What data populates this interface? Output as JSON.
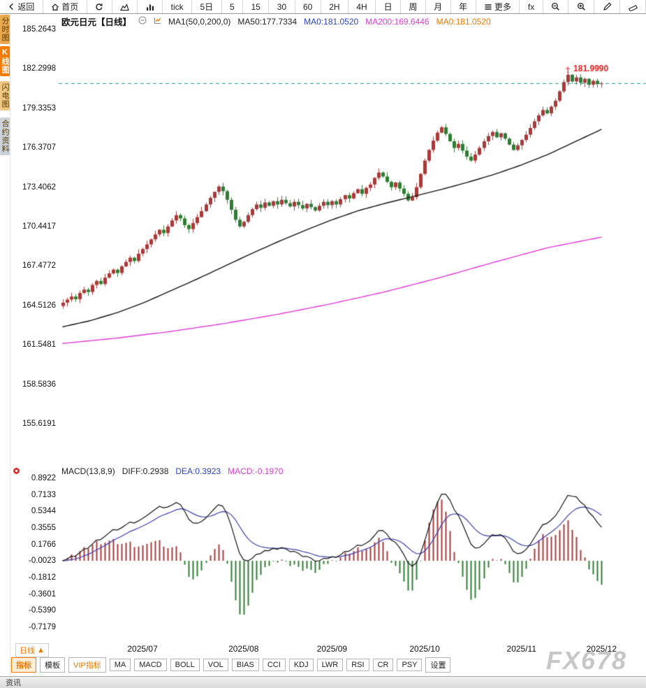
{
  "toolbar": {
    "items": [
      {
        "name": "back",
        "icon": "back-arrow",
        "label": "返回"
      },
      {
        "name": "home",
        "icon": "home",
        "label": "首页"
      },
      {
        "name": "refresh",
        "icon": "refresh",
        "label": ""
      },
      {
        "name": "area-chart",
        "icon": "area-chart",
        "label": ""
      },
      {
        "name": "volume-chart",
        "icon": "volume-chart",
        "label": ""
      },
      {
        "name": "tick",
        "label": "tick"
      },
      {
        "name": "period-5d",
        "label": "5日"
      },
      {
        "name": "period-5",
        "label": "5"
      },
      {
        "name": "period-15",
        "label": "15"
      },
      {
        "name": "period-30",
        "label": "30"
      },
      {
        "name": "period-60",
        "label": "60"
      },
      {
        "name": "period-2h",
        "label": "2H"
      },
      {
        "name": "period-4h",
        "label": "4H"
      },
      {
        "name": "period-day",
        "label": "日"
      },
      {
        "name": "period-week",
        "label": "周"
      },
      {
        "name": "period-month",
        "label": "月"
      },
      {
        "name": "period-year",
        "label": "年"
      },
      {
        "name": "more",
        "icon": "menu",
        "label": "更多"
      },
      {
        "name": "fx-indicator",
        "label": "fx"
      },
      {
        "name": "zoom-out",
        "icon": "zoom-out",
        "label": ""
      },
      {
        "name": "zoom-in",
        "icon": "zoom-in",
        "label": ""
      },
      {
        "name": "draw",
        "icon": "pencil",
        "label": ""
      },
      {
        "name": "measure",
        "icon": "ruler",
        "label": ""
      }
    ]
  },
  "side_tabs": [
    {
      "name": "time-chart",
      "label": "分时图",
      "active": false
    },
    {
      "name": "kline-chart",
      "label": "K线图",
      "active": true
    },
    {
      "name": "lightning-chart",
      "label": "闪电图",
      "active": false
    },
    {
      "name": "contract-info",
      "label": "合约资料",
      "active": false
    }
  ],
  "main_legend": {
    "symbol": "欧元日元【日线】",
    "ma_group": "MA1(50,0,200,0)",
    "ma50": "MA50:177.7334",
    "ma10": "MA0:181.0520",
    "ma200": "MA200:169.6446",
    "ma0": "MA0:181.0520"
  },
  "macd_legend": {
    "name": "MACD(13,8,9)",
    "diff": "DIFF:0.2938",
    "dea": "DEA:0.3923",
    "macd": "MACD:-0.1970"
  },
  "period_button": {
    "label": "日线",
    "arrow": "▲"
  },
  "bottom_tabs": [
    {
      "label": "指标",
      "active": true,
      "accent": true
    },
    {
      "label": "模板",
      "active": false,
      "accent": false
    },
    {
      "label": "VIP指标",
      "active": false,
      "accent": true
    },
    {
      "label": "MA",
      "active": false,
      "accent": false
    },
    {
      "label": "MACD",
      "active": false,
      "accent": false
    },
    {
      "label": "BOLL",
      "active": false,
      "accent": false
    },
    {
      "label": "VOL",
      "active": false,
      "accent": false
    },
    {
      "label": "BIAS",
      "active": false,
      "accent": false
    },
    {
      "label": "CCI",
      "active": false,
      "accent": false
    },
    {
      "label": "KDJ",
      "active": false,
      "accent": false
    },
    {
      "label": "LWR",
      "active": false,
      "accent": false
    },
    {
      "label": "RSI",
      "active": false,
      "accent": false
    },
    {
      "label": "CR",
      "active": false,
      "accent": false
    },
    {
      "label": "PSY",
      "active": false,
      "accent": false
    },
    {
      "label": "设置",
      "active": false,
      "accent": false
    }
  ],
  "watermark": "FX678",
  "status_bar": {
    "news": "资讯"
  },
  "colors": {
    "accent_orange": "#f07800",
    "candle_up": "#a93a3a",
    "candle_down": "#2f7d33",
    "ma50_line": "#111111",
    "ma200_line": "#e239d8",
    "diff_line": "#111111",
    "dea_line": "#3c3cae",
    "last_price_line": "#1a9e8f",
    "marker_red": "#e02020"
  },
  "chart_data": {
    "type": "candlestick",
    "title": "欧元日元 日线",
    "x_labels": [
      "2025/07",
      "2025/08",
      "2025/09",
      "2025/10",
      "2025/11",
      "2025/12"
    ],
    "x_label_indices": [
      19,
      43,
      64,
      86,
      109,
      128
    ],
    "price_axis_ticks": [
      185.2643,
      182.2998,
      179.3353,
      176.3707,
      173.4062,
      170.4417,
      167.4772,
      164.5126,
      161.5481,
      158.5836,
      155.6191
    ],
    "closes": [
      164.72,
      164.95,
      165.18,
      164.98,
      165.45,
      165.7,
      165.52,
      166.05,
      166.35,
      166.12,
      166.6,
      166.92,
      167.2,
      166.95,
      167.45,
      167.78,
      168.1,
      167.85,
      168.4,
      168.75,
      169.1,
      169.48,
      169.85,
      170.2,
      169.95,
      170.45,
      170.9,
      171.3,
      171.05,
      170.55,
      170.25,
      170.7,
      171.15,
      171.6,
      172.1,
      172.6,
      173.05,
      173.45,
      173.1,
      172.45,
      171.7,
      170.95,
      170.45,
      170.8,
      171.3,
      171.75,
      172.1,
      171.85,
      172.25,
      172.0,
      172.35,
      172.1,
      172.45,
      172.2,
      171.95,
      172.3,
      172.05,
      171.8,
      172.15,
      171.9,
      171.65,
      172.0,
      172.3,
      172.05,
      172.35,
      172.1,
      172.5,
      172.8,
      172.55,
      172.95,
      173.25,
      172.9,
      173.35,
      173.6,
      174.1,
      174.5,
      174.2,
      173.8,
      173.4,
      173.75,
      173.3,
      172.9,
      172.4,
      172.65,
      173.4,
      174.4,
      175.4,
      176.2,
      176.9,
      177.5,
      177.9,
      177.4,
      176.85,
      176.35,
      176.65,
      176.15,
      175.7,
      175.4,
      175.85,
      176.35,
      176.85,
      177.25,
      177.55,
      177.15,
      177.45,
      177.05,
      176.6,
      176.2,
      176.55,
      176.95,
      177.35,
      177.85,
      178.35,
      178.8,
      179.2,
      178.95,
      179.45,
      179.9,
      180.6,
      181.3,
      181.85,
      181.35,
      181.65,
      181.25,
      181.55,
      181.1,
      181.4,
      181.15,
      181.2
    ],
    "high_marker": {
      "index": 120,
      "price": 181.999,
      "label": "181.9990"
    },
    "ma50_keypoints": [
      [
        0,
        162.9
      ],
      [
        0.05,
        163.35
      ],
      [
        0.1,
        163.95
      ],
      [
        0.15,
        164.7
      ],
      [
        0.2,
        165.6
      ],
      [
        0.25,
        166.5
      ],
      [
        0.3,
        167.45
      ],
      [
        0.35,
        168.4
      ],
      [
        0.4,
        169.3
      ],
      [
        0.45,
        170.15
      ],
      [
        0.5,
        170.95
      ],
      [
        0.55,
        171.65
      ],
      [
        0.6,
        172.2
      ],
      [
        0.65,
        172.7
      ],
      [
        0.7,
        173.2
      ],
      [
        0.75,
        173.75
      ],
      [
        0.8,
        174.35
      ],
      [
        0.85,
        175.05
      ],
      [
        0.9,
        175.85
      ],
      [
        0.95,
        176.8
      ],
      [
        1,
        177.75
      ]
    ],
    "ma200_keypoints": [
      [
        0,
        161.65
      ],
      [
        0.1,
        162.05
      ],
      [
        0.2,
        162.55
      ],
      [
        0.3,
        163.15
      ],
      [
        0.4,
        163.85
      ],
      [
        0.5,
        164.65
      ],
      [
        0.6,
        165.55
      ],
      [
        0.7,
        166.6
      ],
      [
        0.8,
        167.75
      ],
      [
        0.9,
        168.85
      ],
      [
        1,
        169.65
      ]
    ],
    "macd": {
      "params": [
        13,
        8,
        9
      ],
      "axis_ticks": [
        0.8922,
        0.7133,
        0.5344,
        0.3555,
        0.1766,
        -0.0023,
        -0.1812,
        -0.3601,
        -0.539,
        -0.7179
      ],
      "last": {
        "diff": 0.2938,
        "dea": 0.3923,
        "macd": -0.197
      }
    }
  }
}
